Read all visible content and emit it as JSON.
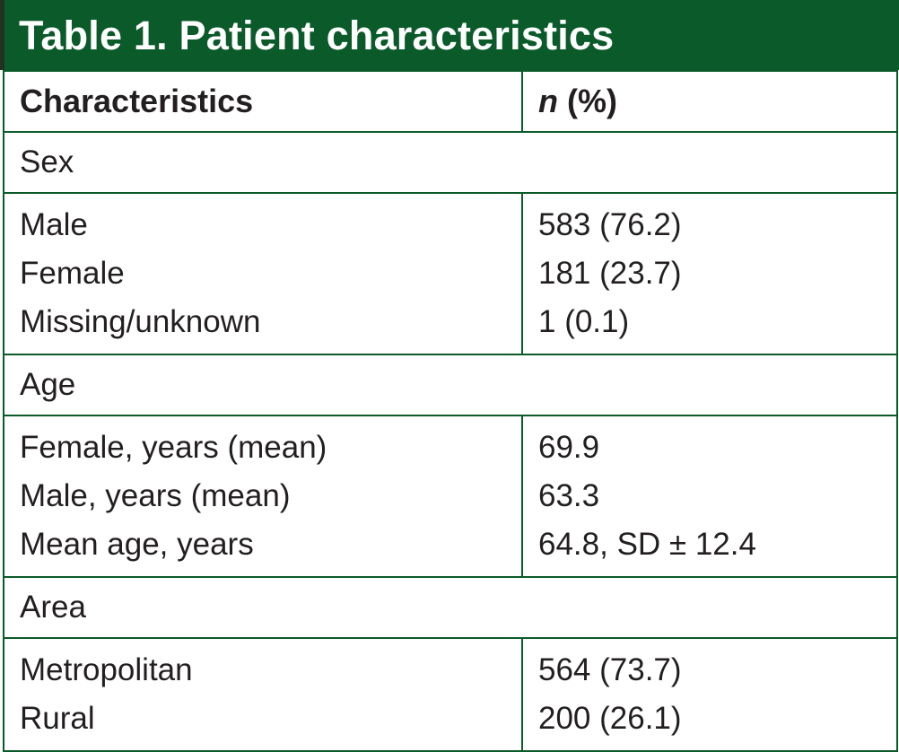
{
  "theme": {
    "accent": "#0b5a2a",
    "title_text_color": "#ffffff"
  },
  "table": {
    "title": "Table 1. Patient characteristics",
    "header": {
      "col1": "Characteristics",
      "col2_italic": "n",
      "col2_rest": " (%)"
    },
    "sections": [
      {
        "label": "Sex",
        "rows": [
          {
            "label": "Male",
            "value": "583 (76.2)"
          },
          {
            "label": "Female",
            "value": "181 (23.7)"
          },
          {
            "label": "Missing/unknown",
            "value": "1 (0.1)"
          }
        ]
      },
      {
        "label": "Age",
        "rows": [
          {
            "label": "Female, years (mean)",
            "value": "69.9"
          },
          {
            "label": "Male, years (mean)",
            "value": "63.3"
          },
          {
            "label": "Mean age, years",
            "value": "64.8, SD ± 12.4"
          }
        ]
      },
      {
        "label": "Area",
        "rows": [
          {
            "label": "Metropolitan",
            "value": "564 (73.7)"
          },
          {
            "label": "Rural",
            "value": "200 (26.1)"
          }
        ]
      }
    ]
  }
}
